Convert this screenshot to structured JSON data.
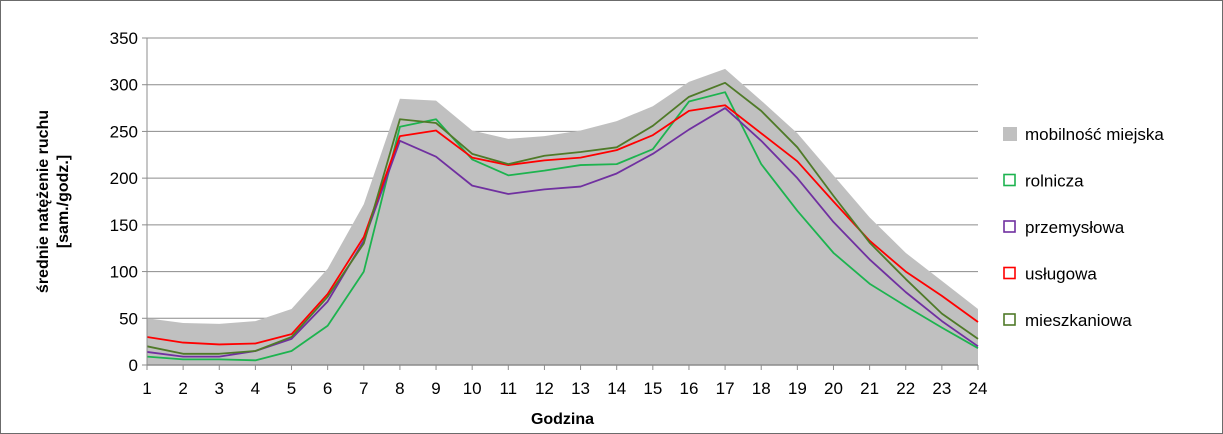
{
  "chart_data": {
    "type": "line",
    "title": "",
    "xlabel": "Godzina",
    "ylabel_line1": "średnie natężenie ruchu",
    "ylabel_line2": "[sam./godz.]",
    "x": [
      1,
      2,
      3,
      4,
      5,
      6,
      7,
      8,
      9,
      10,
      11,
      12,
      13,
      14,
      15,
      16,
      17,
      18,
      19,
      20,
      21,
      22,
      23,
      24
    ],
    "ylim": [
      0,
      350
    ],
    "yticks": [
      0,
      50,
      100,
      150,
      200,
      250,
      300,
      350
    ],
    "grid": "horizontal",
    "legend_position": "right",
    "area_series": {
      "name": "mobilność miejska",
      "color": "#c0c0c0",
      "values": [
        50,
        45,
        44,
        47,
        60,
        103,
        172,
        285,
        283,
        251,
        242,
        245,
        251,
        261,
        277,
        303,
        317,
        283,
        248,
        203,
        158,
        120,
        90,
        60
      ]
    },
    "series": [
      {
        "name": "rolnicza",
        "color": "#1db34f",
        "values": [
          9,
          6,
          6,
          5,
          15,
          42,
          100,
          255,
          263,
          220,
          203,
          208,
          214,
          215,
          231,
          282,
          292,
          215,
          165,
          120,
          87,
          63,
          40,
          18
        ]
      },
      {
        "name": "przemysłowa",
        "color": "#7030a0",
        "values": [
          14,
          9,
          9,
          15,
          28,
          68,
          133,
          240,
          223,
          192,
          183,
          188,
          191,
          205,
          226,
          252,
          275,
          240,
          200,
          153,
          113,
          78,
          47,
          20
        ]
      },
      {
        "name": "usługowa",
        "color": "#ff0000",
        "values": [
          30,
          24,
          22,
          23,
          33,
          76,
          137,
          245,
          251,
          222,
          214,
          219,
          222,
          230,
          246,
          272,
          278,
          248,
          218,
          175,
          133,
          100,
          74,
          46
        ]
      },
      {
        "name": "mieszkaniowa",
        "color": "#4f7a28",
        "values": [
          20,
          12,
          12,
          15,
          30,
          73,
          130,
          263,
          259,
          226,
          215,
          224,
          228,
          233,
          256,
          287,
          302,
          272,
          233,
          181,
          131,
          92,
          55,
          28
        ]
      }
    ]
  }
}
